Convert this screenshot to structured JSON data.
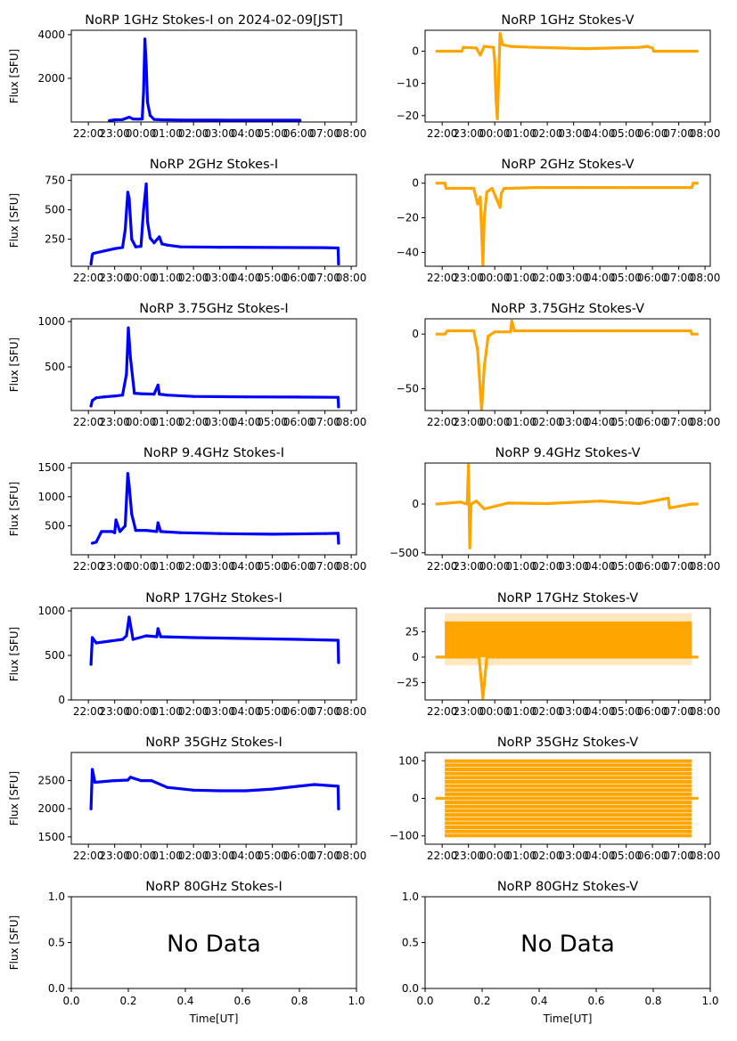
{
  "figure": {
    "title_suffix": " on 2024-02-09[JST]",
    "ylabel": "Flux [SFU]",
    "xlabel": "Time[UT]",
    "no_data_text": "No Data",
    "colors": {
      "stokes_i": "#0000ff",
      "stokes_v": "#ffa500",
      "axes": "#000000"
    }
  },
  "chart_data": [
    {
      "type": "scatter",
      "title": "NoRP 1GHz Stokes-I on 2024-02-09[JST]",
      "column": "left",
      "row": 0,
      "xlabel": "",
      "ylabel": "Flux [SFU]",
      "xticks": [
        "22:00",
        "23:00",
        "00:00",
        "01:00",
        "02:00",
        "03:00",
        "04:00",
        "05:00",
        "06:00",
        "07:00",
        "08:00"
      ],
      "xlim_hours": [
        21.35,
        32.2
      ],
      "ylim": [
        0,
        4200
      ],
      "yticks": [
        2000,
        4000
      ],
      "series": [
        {
          "name": "Stokes-I",
          "color": "#0000ff",
          "x_hours": [
            22.8,
            23.0,
            23.3,
            23.55,
            23.7,
            23.9,
            24.05,
            24.1,
            24.15,
            24.2,
            24.25,
            24.35,
            24.5,
            24.8,
            25.5,
            27,
            28.5,
            29.5,
            30.05
          ],
          "y": [
            60,
            100,
            110,
            220,
            140,
            130,
            140,
            1400,
            3800,
            2600,
            900,
            300,
            120,
            100,
            90,
            85,
            80,
            80,
            80
          ]
        }
      ]
    },
    {
      "type": "scatter",
      "title": "NoRP 1GHz Stokes-V",
      "column": "right",
      "row": 0,
      "xlabel": "",
      "ylabel": "",
      "xticks": [
        "22:00",
        "23:00",
        "00:00",
        "01:00",
        "02:00",
        "03:00",
        "04:00",
        "05:00",
        "06:00",
        "07:00",
        "08:00"
      ],
      "xlim_hours": [
        21.35,
        32.2
      ],
      "ylim": [
        -22,
        6.5
      ],
      "yticks": [
        -20,
        -10,
        0
      ],
      "series": [
        {
          "name": "Stokes-V",
          "color": "#ffa500",
          "x_hours": [
            21.8,
            22.75,
            22.8,
            23.3,
            23.45,
            23.6,
            23.95,
            24.0,
            24.05,
            24.1,
            24.15,
            24.2,
            24.3,
            24.6,
            25.5,
            26.5,
            27.5,
            28.5,
            29.5,
            29.8,
            30.0,
            30.05,
            31.7
          ],
          "y": [
            0,
            0,
            1.2,
            1,
            -1.2,
            1.5,
            1.2,
            -3,
            -15,
            -21,
            -8,
            5.5,
            2,
            1.5,
            1.2,
            1,
            0.8,
            1,
            1.2,
            1.5,
            1.0,
            0,
            0
          ]
        }
      ]
    },
    {
      "type": "scatter",
      "title": "NoRP 2GHz Stokes-I",
      "column": "left",
      "row": 1,
      "xlabel": "",
      "ylabel": "Flux [SFU]",
      "xticks": [
        "22:00",
        "23:00",
        "00:00",
        "01:00",
        "02:00",
        "03:00",
        "04:00",
        "05:00",
        "06:00",
        "07:00",
        "08:00"
      ],
      "xlim_hours": [
        21.35,
        32.2
      ],
      "ylim": [
        20,
        800
      ],
      "yticks": [
        250,
        500,
        750
      ],
      "series": [
        {
          "name": "Stokes-I",
          "color": "#0000ff",
          "x_hours": [
            22.1,
            22.15,
            22.2,
            22.6,
            23.0,
            23.3,
            23.4,
            23.5,
            23.55,
            23.65,
            23.8,
            24.0,
            24.1,
            24.2,
            24.25,
            24.35,
            24.5,
            24.7,
            24.8,
            25.0,
            25.5,
            27,
            29,
            31,
            31.5,
            31.52
          ],
          "y": [
            40,
            120,
            130,
            150,
            170,
            180,
            330,
            650,
            600,
            250,
            185,
            190,
            500,
            720,
            400,
            260,
            220,
            270,
            210,
            200,
            185,
            182,
            180,
            178,
            175,
            40
          ]
        }
      ]
    },
    {
      "type": "scatter",
      "title": "NoRP 2GHz Stokes-V",
      "column": "right",
      "row": 1,
      "xlabel": "",
      "ylabel": "",
      "xticks": [
        "22:00",
        "23:00",
        "00:00",
        "01:00",
        "02:00",
        "03:00",
        "04:00",
        "05:00",
        "06:00",
        "07:00",
        "08:00"
      ],
      "xlim_hours": [
        21.35,
        32.2
      ],
      "ylim": [
        -48,
        5
      ],
      "yticks": [
        -40,
        -20,
        0
      ],
      "series": [
        {
          "name": "Stokes-V",
          "color": "#ffa500",
          "x_hours": [
            21.8,
            22.1,
            22.15,
            23.2,
            23.35,
            23.45,
            23.55,
            23.6,
            23.7,
            23.9,
            24.2,
            24.25,
            24.35,
            24.6,
            25.5,
            27,
            29,
            31,
            31.5,
            31.55,
            31.7
          ],
          "y": [
            0,
            0,
            -3,
            -3,
            -12,
            -8,
            -47,
            -20,
            -5,
            -3,
            -14,
            -6,
            -3,
            -3,
            -2.5,
            -2.5,
            -2.5,
            -2.5,
            -2.5,
            0,
            0
          ]
        }
      ]
    },
    {
      "type": "scatter",
      "title": "NoRP 3.75GHz Stokes-I",
      "column": "left",
      "row": 2,
      "xlabel": "",
      "ylabel": "Flux [SFU]",
      "xticks": [
        "22:00",
        "23:00",
        "00:00",
        "01:00",
        "02:00",
        "03:00",
        "04:00",
        "05:00",
        "06:00",
        "07:00",
        "08:00"
      ],
      "xlim_hours": [
        21.35,
        32.2
      ],
      "ylim": [
        20,
        1030
      ],
      "yticks": [
        500,
        1000
      ],
      "series": [
        {
          "name": "Stokes-I",
          "color": "#0000ff",
          "x_hours": [
            22.1,
            22.15,
            22.3,
            22.6,
            23.0,
            23.3,
            23.45,
            23.52,
            23.6,
            23.75,
            24.0,
            24.5,
            24.65,
            24.7,
            25.0,
            26,
            28,
            30,
            31.5,
            31.52
          ],
          "y": [
            70,
            130,
            160,
            170,
            180,
            190,
            420,
            930,
            600,
            210,
            205,
            200,
            300,
            200,
            190,
            175,
            170,
            168,
            165,
            60
          ]
        }
      ]
    },
    {
      "type": "scatter",
      "title": "NoRP 3.75GHz Stokes-V",
      "column": "right",
      "row": 2,
      "xlabel": "",
      "ylabel": "",
      "xticks": [
        "22:00",
        "23:00",
        "00:00",
        "01:00",
        "02:00",
        "03:00",
        "04:00",
        "05:00",
        "06:00",
        "07:00",
        "08:00"
      ],
      "xlim_hours": [
        21.35,
        32.2
      ],
      "ylim": [
        -70,
        14
      ],
      "yticks": [
        -50,
        0
      ],
      "series": [
        {
          "name": "Stokes-V",
          "color": "#ffa500",
          "x_hours": [
            21.8,
            22.1,
            22.2,
            23.2,
            23.35,
            23.5,
            23.6,
            23.75,
            24.0,
            24.6,
            24.65,
            24.75,
            25.5,
            27,
            29,
            31,
            31.45,
            31.5,
            31.7
          ],
          "y": [
            0,
            0,
            3,
            3,
            -15,
            -69,
            -30,
            -2,
            2,
            2,
            12,
            3,
            3,
            3,
            3,
            3,
            3,
            0,
            0
          ]
        }
      ]
    },
    {
      "type": "scatter",
      "title": "NoRP 9.4GHz Stokes-I",
      "column": "left",
      "row": 3,
      "xlabel": "",
      "ylabel": "Flux [SFU]",
      "xticks": [
        "22:00",
        "23:00",
        "00:00",
        "01:00",
        "02:00",
        "03:00",
        "04:00",
        "05:00",
        "06:00",
        "07:00",
        "08:00"
      ],
      "xlim_hours": [
        21.35,
        32.2
      ],
      "ylim": [
        0,
        1580
      ],
      "yticks": [
        500,
        1000,
        1500
      ],
      "series": [
        {
          "name": "Stokes-I",
          "color": "#0000ff",
          "x_hours": [
            22.15,
            22.3,
            22.5,
            22.9,
            23.0,
            23.05,
            23.2,
            23.4,
            23.5,
            23.55,
            23.65,
            23.8,
            24.2,
            24.6,
            24.65,
            24.75,
            25.5,
            27,
            29,
            31,
            31.5,
            31.52
          ],
          "y": [
            200,
            220,
            400,
            400,
            380,
            600,
            400,
            500,
            1400,
            1200,
            700,
            420,
            420,
            400,
            550,
            400,
            380,
            365,
            355,
            365,
            370,
            200
          ]
        }
      ]
    },
    {
      "type": "scatter",
      "title": "NoRP 9.4GHz Stokes-V",
      "column": "right",
      "row": 3,
      "xlabel": "",
      "ylabel": "",
      "xticks": [
        "22:00",
        "23:00",
        "00:00",
        "01:00",
        "02:00",
        "03:00",
        "04:00",
        "05:00",
        "06:00",
        "07:00",
        "08:00"
      ],
      "xlim_hours": [
        21.35,
        32.2
      ],
      "ylim": [
        -520,
        420
      ],
      "yticks": [
        -500,
        0
      ],
      "series": [
        {
          "name": "Stokes-V",
          "color": "#ffa500",
          "x_hours": [
            21.8,
            22.7,
            22.95,
            23.0,
            23.05,
            23.1,
            23.3,
            23.6,
            24.5,
            26,
            28,
            29.5,
            30.6,
            30.65,
            31.5,
            31.7
          ],
          "y": [
            0,
            20,
            0,
            400,
            -450,
            0,
            30,
            -50,
            10,
            5,
            30,
            5,
            60,
            -40,
            0,
            0
          ]
        }
      ]
    },
    {
      "type": "scatter",
      "title": "NoRP 17GHz Stokes-I",
      "column": "left",
      "row": 4,
      "xlabel": "",
      "ylabel": "Flux [SFU]",
      "xticks": [
        "22:00",
        "23:00",
        "00:00",
        "01:00",
        "02:00",
        "03:00",
        "04:00",
        "05:00",
        "06:00",
        "07:00",
        "08:00"
      ],
      "xlim_hours": [
        21.35,
        32.2
      ],
      "ylim": [
        0,
        1030
      ],
      "yticks": [
        0,
        500,
        1000
      ],
      "series": [
        {
          "name": "Stokes-I",
          "color": "#0000ff",
          "x_hours": [
            22.1,
            22.15,
            22.3,
            22.8,
            23.3,
            23.45,
            23.55,
            23.7,
            24.2,
            24.6,
            24.65,
            24.75,
            26,
            28,
            30,
            31.5,
            31.52
          ],
          "y": [
            400,
            700,
            640,
            660,
            680,
            720,
            930,
            680,
            720,
            710,
            800,
            710,
            700,
            690,
            680,
            670,
            420
          ]
        }
      ]
    },
    {
      "type": "scatter",
      "title": "NoRP 17GHz Stokes-V",
      "column": "right",
      "row": 4,
      "xlabel": "",
      "ylabel": "",
      "xticks": [
        "22:00",
        "23:00",
        "00:00",
        "01:00",
        "02:00",
        "03:00",
        "04:00",
        "05:00",
        "06:00",
        "07:00",
        "08:00"
      ],
      "xlim_hours": [
        21.35,
        32.2
      ],
      "ylim": [
        -42,
        48
      ],
      "yticks": [
        -25,
        0,
        25
      ],
      "band": {
        "upper": 35,
        "lower": 0,
        "x_start_hours": 22.1,
        "x_end_hours": 31.5
      },
      "series": [
        {
          "name": "Stokes-V",
          "color": "#ffa500",
          "x_hours": [
            21.8,
            22.1,
            23.4,
            23.55,
            23.7,
            31.5,
            31.7
          ],
          "y": [
            0,
            0,
            0,
            -40,
            0,
            0,
            0
          ]
        }
      ]
    },
    {
      "type": "scatter",
      "title": "NoRP 35GHz Stokes-I",
      "column": "left",
      "row": 5,
      "xlabel": "",
      "ylabel": "Flux [SFU]",
      "xticks": [
        "22:00",
        "23:00",
        "00:00",
        "01:00",
        "02:00",
        "03:00",
        "04:00",
        "05:00",
        "06:00",
        "07:00",
        "08:00"
      ],
      "xlim_hours": [
        21.35,
        32.2
      ],
      "ylim": [
        1370,
        3000
      ],
      "yticks": [
        1500,
        2000,
        2500
      ],
      "series": [
        {
          "name": "Stokes-I",
          "color": "#0000ff",
          "x_hours": [
            22.1,
            22.15,
            22.25,
            23.0,
            23.5,
            23.6,
            24.0,
            24.4,
            25.0,
            26.0,
            27.0,
            28.0,
            29.0,
            30.0,
            30.6,
            31.5,
            31.52
          ],
          "y": [
            2000,
            2700,
            2470,
            2500,
            2510,
            2560,
            2500,
            2500,
            2380,
            2330,
            2320,
            2320,
            2350,
            2400,
            2430,
            2400,
            2000
          ]
        }
      ]
    },
    {
      "type": "scatter",
      "title": "NoRP 35GHz Stokes-V",
      "column": "right",
      "row": 5,
      "xlabel": "",
      "ylabel": "",
      "xticks": [
        "22:00",
        "23:00",
        "00:00",
        "01:00",
        "02:00",
        "03:00",
        "04:00",
        "05:00",
        "06:00",
        "07:00",
        "08:00"
      ],
      "xlim_hours": [
        21.35,
        32.2
      ],
      "ylim": [
        -122,
        122
      ],
      "yticks": [
        -100,
        0,
        100
      ],
      "quantized_levels": {
        "step": 11,
        "min": -99,
        "max": 99,
        "x_start_hours": 22.1,
        "x_end_hours": 31.5
      },
      "series": [
        {
          "name": "Stokes-V",
          "color": "#ffa500",
          "x_hours": [
            21.8,
            31.7
          ],
          "y": [
            0,
            0
          ]
        }
      ]
    },
    {
      "type": "scatter",
      "title": "NoRP 80GHz Stokes-I",
      "column": "left",
      "row": 6,
      "xlabel": "Time[UT]",
      "ylabel": "Flux [SFU]",
      "xticks": [
        "0.0",
        "0.2",
        "0.4",
        "0.6",
        "0.8",
        "1.0"
      ],
      "xlim": [
        0,
        1
      ],
      "ylim": [
        0,
        1
      ],
      "yticks_labels": [
        "0.0",
        "0.5",
        "1.0"
      ],
      "annotation": "No Data",
      "series": []
    },
    {
      "type": "scatter",
      "title": "NoRP 80GHz Stokes-V",
      "column": "right",
      "row": 6,
      "xlabel": "Time[UT]",
      "ylabel": "",
      "xticks": [
        "0.0",
        "0.2",
        "0.4",
        "0.6",
        "0.8",
        "1.0"
      ],
      "xlim": [
        0,
        1
      ],
      "ylim": [
        0,
        1
      ],
      "yticks_labels": [
        "0.0",
        "0.5",
        "1.0"
      ],
      "annotation": "No Data",
      "series": []
    }
  ]
}
